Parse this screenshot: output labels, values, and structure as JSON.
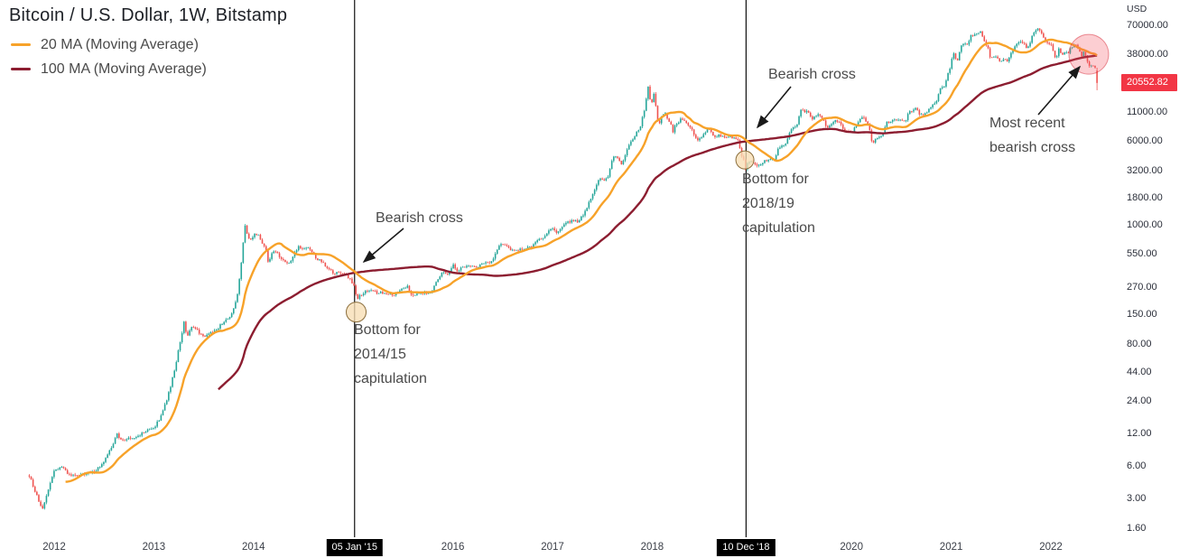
{
  "header": {
    "title": "Bitcoin / U.S. Dollar, 1W, Bitstamp",
    "legend": [
      {
        "label": "20 MA (Moving Average)",
        "color": "#f7a229"
      },
      {
        "label": "100 MA (Moving Average)",
        "color": "#8c1d30"
      }
    ]
  },
  "annotations": {
    "cross_2014": "Bearish cross",
    "bottom_2014": "Bottom for\n2014/15\ncapitulation",
    "cross_2018": "Bearish cross",
    "bottom_2018": "Bottom for\n2018/19\ncapitulation",
    "most_recent": "Most recent\nbearish cross"
  },
  "price_axis": {
    "unit": "USD",
    "ticks": [
      "70000.00",
      "38000.00",
      "11000.00",
      "6000.00",
      "3200.00",
      "1800.00",
      "1000.00",
      "550.00",
      "270.00",
      "150.00",
      "80.00",
      "44.00",
      "24.00",
      "12.00",
      "6.00",
      "3.00",
      "1.60"
    ],
    "last_price": "20552.82",
    "last_price_value": 20552.82,
    "badge_color": "#f23645"
  },
  "time_axis": {
    "year_ticks": [
      2012,
      2013,
      2014,
      2016,
      2017,
      2018,
      2020,
      2021,
      2022
    ],
    "event_ticks": [
      {
        "label": "05 Jan '15",
        "t": 2015.014
      },
      {
        "label": "10 Dec '18",
        "t": 2018.942
      }
    ]
  },
  "chart_data": {
    "type": "candlestick",
    "symbol": "Bitcoin / U.S. Dollar",
    "interval": "1W",
    "exchange": "Bitstamp",
    "scale": "log",
    "xlim": [
      2011.75,
      2022.47
    ],
    "ylim": [
      1.6,
      70000
    ],
    "up_color": "#26a69a",
    "down_color": "#ef5350",
    "overlays": [
      {
        "name": "20 MA (Moving Average)",
        "period": 20,
        "color": "#f7a229"
      },
      {
        "name": "100 MA (Moving Average)",
        "period": 100,
        "color": "#8c1d30"
      }
    ],
    "events": [
      {
        "label": "Bearish cross",
        "t": 2015.0,
        "price": 420
      },
      {
        "label": "Bottom for 2014/15 capitulation",
        "t": 2015.03,
        "price": 158,
        "r": 11,
        "fill": "rgba(247,222,180,0.78)",
        "stroke": "#8a6d3b"
      },
      {
        "label": "Bearish cross",
        "t": 2018.92,
        "price": 7000
      },
      {
        "label": "Bottom for 2018/19 capitulation",
        "t": 2018.93,
        "price": 4000,
        "r": 10,
        "fill": "rgba(247,222,180,0.78)",
        "stroke": "#8a6d3b"
      },
      {
        "label": "Most recent bearish cross",
        "t": 2022.38,
        "price": 37800,
        "r": 22,
        "fill": "rgba(244,80,92,0.28)",
        "stroke": "rgba(215,45,60,0.5)"
      }
    ],
    "last_candle": {
      "open": 26700,
      "high": 28400,
      "low": 17600,
      "close": 20552.82
    },
    "close_anchors": [
      [
        2011.75,
        4.9
      ],
      [
        2011.83,
        3.1
      ],
      [
        2011.88,
        2.3
      ],
      [
        2011.96,
        4.2
      ],
      [
        2012.0,
        5.4
      ],
      [
        2012.08,
        5.9
      ],
      [
        2012.15,
        4.9
      ],
      [
        2012.25,
        4.9
      ],
      [
        2012.33,
        5.1
      ],
      [
        2012.42,
        5.4
      ],
      [
        2012.5,
        6.7
      ],
      [
        2012.58,
        9.0
      ],
      [
        2012.63,
        11.8
      ],
      [
        2012.67,
        10.3
      ],
      [
        2012.75,
        10.9
      ],
      [
        2012.83,
        11.1
      ],
      [
        2012.92,
        12.6
      ],
      [
        2013.0,
        13.4
      ],
      [
        2013.06,
        16.5
      ],
      [
        2013.12,
        23
      ],
      [
        2013.17,
        33
      ],
      [
        2013.21,
        47
      ],
      [
        2013.25,
        72
      ],
      [
        2013.28,
        93
      ],
      [
        2013.3,
        135
      ],
      [
        2013.33,
        92
      ],
      [
        2013.38,
        118
      ],
      [
        2013.42,
        112
      ],
      [
        2013.46,
        100
      ],
      [
        2013.5,
        93
      ],
      [
        2013.54,
        97
      ],
      [
        2013.58,
        103
      ],
      [
        2013.63,
        108
      ],
      [
        2013.67,
        120
      ],
      [
        2013.71,
        132
      ],
      [
        2013.75,
        136
      ],
      [
        2013.79,
        158
      ],
      [
        2013.83,
        205
      ],
      [
        2013.87,
        380
      ],
      [
        2013.9,
        735
      ],
      [
        2013.92,
        1050
      ],
      [
        2013.94,
        780
      ],
      [
        2013.97,
        745
      ],
      [
        2014.0,
        805
      ],
      [
        2014.04,
        835
      ],
      [
        2014.08,
        700
      ],
      [
        2014.12,
        620
      ],
      [
        2014.15,
        445
      ],
      [
        2014.19,
        580
      ],
      [
        2014.23,
        570
      ],
      [
        2014.27,
        500
      ],
      [
        2014.31,
        455
      ],
      [
        2014.35,
        445
      ],
      [
        2014.38,
        460
      ],
      [
        2014.42,
        580
      ],
      [
        2014.46,
        640
      ],
      [
        2014.5,
        600
      ],
      [
        2014.54,
        620
      ],
      [
        2014.58,
        585
      ],
      [
        2014.62,
        505
      ],
      [
        2014.65,
        480
      ],
      [
        2014.69,
        460
      ],
      [
        2014.73,
        400
      ],
      [
        2014.77,
        385
      ],
      [
        2014.81,
        350
      ],
      [
        2014.85,
        378
      ],
      [
        2014.88,
        352
      ],
      [
        2014.92,
        355
      ],
      [
        2014.96,
        325
      ],
      [
        2015.0,
        287
      ],
      [
        2015.02,
        255
      ],
      [
        2015.04,
        199
      ],
      [
        2015.06,
        225
      ],
      [
        2015.08,
        218
      ],
      [
        2015.12,
        245
      ],
      [
        2015.17,
        255
      ],
      [
        2015.21,
        247
      ],
      [
        2015.25,
        236
      ],
      [
        2015.29,
        240
      ],
      [
        2015.33,
        237
      ],
      [
        2015.38,
        233
      ],
      [
        2015.42,
        228
      ],
      [
        2015.46,
        250
      ],
      [
        2015.5,
        258
      ],
      [
        2015.54,
        277
      ],
      [
        2015.58,
        229
      ],
      [
        2015.63,
        231
      ],
      [
        2015.67,
        236
      ],
      [
        2015.71,
        238
      ],
      [
        2015.75,
        237
      ],
      [
        2015.79,
        250
      ],
      [
        2015.83,
        295
      ],
      [
        2015.87,
        330
      ],
      [
        2015.88,
        377
      ],
      [
        2015.92,
        358
      ],
      [
        2015.96,
        362
      ],
      [
        2016.0,
        434
      ],
      [
        2016.04,
        382
      ],
      [
        2016.08,
        398
      ],
      [
        2016.12,
        411
      ],
      [
        2016.17,
        416
      ],
      [
        2016.21,
        419
      ],
      [
        2016.25,
        416
      ],
      [
        2016.29,
        448
      ],
      [
        2016.33,
        452
      ],
      [
        2016.38,
        457
      ],
      [
        2016.42,
        528
      ],
      [
        2016.46,
        660
      ],
      [
        2016.5,
        675
      ],
      [
        2016.54,
        655
      ],
      [
        2016.58,
        582
      ],
      [
        2016.63,
        575
      ],
      [
        2016.67,
        610
      ],
      [
        2016.71,
        607
      ],
      [
        2016.75,
        613
      ],
      [
        2016.79,
        630
      ],
      [
        2016.83,
        700
      ],
      [
        2016.88,
        745
      ],
      [
        2016.92,
        770
      ],
      [
        2016.96,
        900
      ],
      [
        2017.0,
        963
      ],
      [
        2017.04,
        830
      ],
      [
        2017.08,
        915
      ],
      [
        2017.12,
        1010
      ],
      [
        2017.17,
        1080
      ],
      [
        2017.21,
        1120
      ],
      [
        2017.25,
        1080
      ],
      [
        2017.29,
        1190
      ],
      [
        2017.33,
        1350
      ],
      [
        2017.38,
        1760
      ],
      [
        2017.42,
        2060
      ],
      [
        2017.46,
        2550
      ],
      [
        2017.48,
        2660
      ],
      [
        2017.52,
        2540
      ],
      [
        2017.56,
        2870
      ],
      [
        2017.6,
        4080
      ],
      [
        2017.63,
        4330
      ],
      [
        2017.65,
        4170
      ],
      [
        2017.69,
        3650
      ],
      [
        2017.73,
        4400
      ],
      [
        2017.77,
        5710
      ],
      [
        2017.81,
        6130
      ],
      [
        2017.85,
        7370
      ],
      [
        2017.88,
        8040
      ],
      [
        2017.9,
        9830
      ],
      [
        2017.92,
        11100
      ],
      [
        2017.94,
        14300
      ],
      [
        2017.96,
        19000
      ],
      [
        2017.98,
        14400
      ],
      [
        2018.0,
        13800
      ],
      [
        2018.02,
        16500
      ],
      [
        2018.04,
        11600
      ],
      [
        2018.06,
        8300
      ],
      [
        2018.1,
        10200
      ],
      [
        2018.13,
        11100
      ],
      [
        2018.15,
        9900
      ],
      [
        2018.19,
        8550
      ],
      [
        2018.21,
        6900
      ],
      [
        2018.23,
        8300
      ],
      [
        2018.27,
        8900
      ],
      [
        2018.29,
        9650
      ],
      [
        2018.33,
        9350
      ],
      [
        2018.35,
        8500
      ],
      [
        2018.4,
        7500
      ],
      [
        2018.44,
        6400
      ],
      [
        2018.46,
        6150
      ],
      [
        2018.5,
        6400
      ],
      [
        2018.54,
        7400
      ],
      [
        2018.56,
        8200
      ],
      [
        2018.6,
        7000
      ],
      [
        2018.63,
        6500
      ],
      [
        2018.67,
        6750
      ],
      [
        2018.71,
        6550
      ],
      [
        2018.75,
        6600
      ],
      [
        2018.79,
        6550
      ],
      [
        2018.83,
        6380
      ],
      [
        2018.85,
        6400
      ],
      [
        2018.87,
        5580
      ],
      [
        2018.9,
        4350
      ],
      [
        2018.92,
        4000
      ],
      [
        2018.94,
        3230
      ],
      [
        2018.96,
        3850
      ],
      [
        2018.98,
        3750
      ],
      [
        2019.0,
        3850
      ],
      [
        2019.04,
        3600
      ],
      [
        2019.08,
        3650
      ],
      [
        2019.12,
        3900
      ],
      [
        2019.15,
        3950
      ],
      [
        2019.19,
        4050
      ],
      [
        2019.23,
        4100
      ],
      [
        2019.27,
        5250
      ],
      [
        2019.31,
        5300
      ],
      [
        2019.35,
        5800
      ],
      [
        2019.38,
        7200
      ],
      [
        2019.42,
        7980
      ],
      [
        2019.46,
        8800
      ],
      [
        2019.48,
        10700
      ],
      [
        2019.5,
        12300
      ],
      [
        2019.52,
        10800
      ],
      [
        2019.56,
        11400
      ],
      [
        2019.6,
        9500
      ],
      [
        2019.63,
        10300
      ],
      [
        2019.67,
        10400
      ],
      [
        2019.71,
        9600
      ],
      [
        2019.75,
        8100
      ],
      [
        2019.79,
        8250
      ],
      [
        2019.83,
        9200
      ],
      [
        2019.87,
        8800
      ],
      [
        2019.9,
        8500
      ],
      [
        2019.92,
        7300
      ],
      [
        2019.96,
        7400
      ],
      [
        2020.0,
        7200
      ],
      [
        2020.04,
        8050
      ],
      [
        2020.08,
        9350
      ],
      [
        2020.12,
        9900
      ],
      [
        2020.15,
        8900
      ],
      [
        2020.17,
        8700
      ],
      [
        2020.21,
        5300
      ],
      [
        2020.23,
        6200
      ],
      [
        2020.27,
        6400
      ],
      [
        2020.31,
        6900
      ],
      [
        2020.35,
        8750
      ],
      [
        2020.38,
        9000
      ],
      [
        2020.42,
        9500
      ],
      [
        2020.46,
        9400
      ],
      [
        2020.5,
        9150
      ],
      [
        2020.54,
        9200
      ],
      [
        2020.58,
        11100
      ],
      [
        2020.63,
        11700
      ],
      [
        2020.65,
        11900
      ],
      [
        2020.69,
        10300
      ],
      [
        2020.73,
        10700
      ],
      [
        2020.77,
        11400
      ],
      [
        2020.81,
        13050
      ],
      [
        2020.85,
        13800
      ],
      [
        2020.87,
        16100
      ],
      [
        2020.9,
        18700
      ],
      [
        2020.92,
        18200
      ],
      [
        2020.94,
        19200
      ],
      [
        2020.96,
        23800
      ],
      [
        2020.98,
        26500
      ],
      [
        2021.0,
        32200
      ],
      [
        2021.02,
        40600
      ],
      [
        2021.04,
        35800
      ],
      [
        2021.06,
        32100
      ],
      [
        2021.08,
        38900
      ],
      [
        2021.1,
        46300
      ],
      [
        2021.13,
        48700
      ],
      [
        2021.15,
        45100
      ],
      [
        2021.17,
        46100
      ],
      [
        2021.19,
        57400
      ],
      [
        2021.21,
        54100
      ],
      [
        2021.23,
        57100
      ],
      [
        2021.25,
        58100
      ],
      [
        2021.27,
        58200
      ],
      [
        2021.29,
        63500
      ],
      [
        2021.31,
        56200
      ],
      [
        2021.33,
        49100
      ],
      [
        2021.35,
        46700
      ],
      [
        2021.37,
        43600
      ],
      [
        2021.38,
        34700
      ],
      [
        2021.42,
        35600
      ],
      [
        2021.46,
        35700
      ],
      [
        2021.48,
        31800
      ],
      [
        2021.52,
        34300
      ],
      [
        2021.54,
        33500
      ],
      [
        2021.56,
        31500
      ],
      [
        2021.58,
        34300
      ],
      [
        2021.6,
        38200
      ],
      [
        2021.63,
        42800
      ],
      [
        2021.65,
        45600
      ],
      [
        2021.67,
        48900
      ],
      [
        2021.69,
        48900
      ],
      [
        2021.71,
        46800
      ],
      [
        2021.73,
        48800
      ],
      [
        2021.75,
        42900
      ],
      [
        2021.77,
        43800
      ],
      [
        2021.79,
        47700
      ],
      [
        2021.81,
        54700
      ],
      [
        2021.83,
        61300
      ],
      [
        2021.85,
        61500
      ],
      [
        2021.87,
        64400
      ],
      [
        2021.88,
        65500
      ],
      [
        2021.9,
        58600
      ],
      [
        2021.92,
        57200
      ],
      [
        2021.94,
        49300
      ],
      [
        2021.96,
        50100
      ],
      [
        2021.98,
        46300
      ],
      [
        2022.0,
        47700
      ],
      [
        2022.02,
        41900
      ],
      [
        2022.04,
        35100
      ],
      [
        2022.06,
        36300
      ],
      [
        2022.08,
        42400
      ],
      [
        2022.1,
        39400
      ],
      [
        2022.12,
        37800
      ],
      [
        2022.15,
        39700
      ],
      [
        2022.17,
        38400
      ],
      [
        2022.19,
        42200
      ],
      [
        2022.21,
        44500
      ],
      [
        2022.23,
        46300
      ],
      [
        2022.25,
        45800
      ],
      [
        2022.27,
        43200
      ],
      [
        2022.29,
        39500
      ],
      [
        2022.31,
        36000
      ],
      [
        2022.33,
        39700
      ],
      [
        2022.35,
        36000
      ],
      [
        2022.37,
        31300
      ],
      [
        2022.38,
        29400
      ],
      [
        2022.4,
        30100
      ],
      [
        2022.42,
        29900
      ],
      [
        2022.44,
        29500
      ],
      [
        2022.46,
        26700
      ],
      [
        2022.47,
        20552.82
      ]
    ]
  }
}
